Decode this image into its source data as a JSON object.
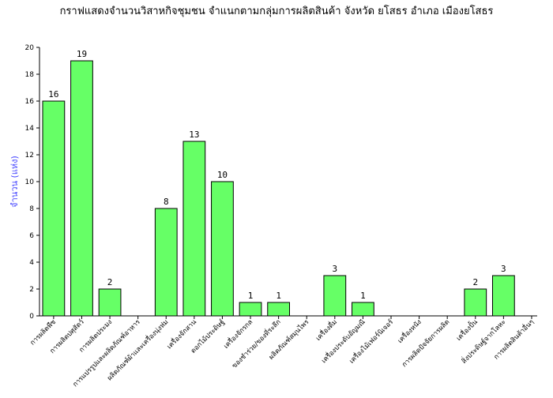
{
  "chart_data": {
    "type": "bar",
    "title": "กราฟแสดงจำนวนวิสาหกิจชุมชน จำแนกตามกลุ่มการผลิตสินค้า จังหวัด  ยโสธร  อำเภอ  เมืองยโสธร",
    "xlabel": "",
    "ylabel": "จำนวน (แห่ง)",
    "ylim": [
      0,
      20
    ],
    "yticks": [
      0,
      2,
      4,
      6,
      8,
      10,
      12,
      14,
      16,
      18,
      20
    ],
    "grid": false,
    "categories": [
      "การผลิตพืช",
      "การผลิตปศุสัตว์",
      "การผลิตประมง",
      "การแปรรูปและผลิตภัณฑ์อาหาร",
      "ผลิตภัณฑ์ผ้าและเครื่องนุ่งห่ม",
      "เครื่องจักสาน",
      "ดอกไม้ประดิษฐ์",
      "เครื่องจักรกล",
      "ของชำร่วย/ของที่ระลึก",
      "ผลิตภัณฑ์สมุนไพร",
      "เครื่องดื่ม",
      "เครื่องประดับอัญมณี",
      "เครื่องไม้เฟอร์นิเจอร์",
      "เครื่องหนัง",
      "การผลิตปัจจัยการผลิต",
      "เครื่องปั้น",
      "สิ่งประดิษฐ์จากโลหะ",
      "การผลิตสินค้าอื่นๆ"
    ],
    "values": [
      16,
      19,
      2,
      0,
      8,
      13,
      10,
      1,
      1,
      0,
      3,
      1,
      0,
      0,
      0,
      2,
      3,
      0
    ],
    "bar_color": "#66ff66",
    "bar_stroke": "#000000"
  }
}
